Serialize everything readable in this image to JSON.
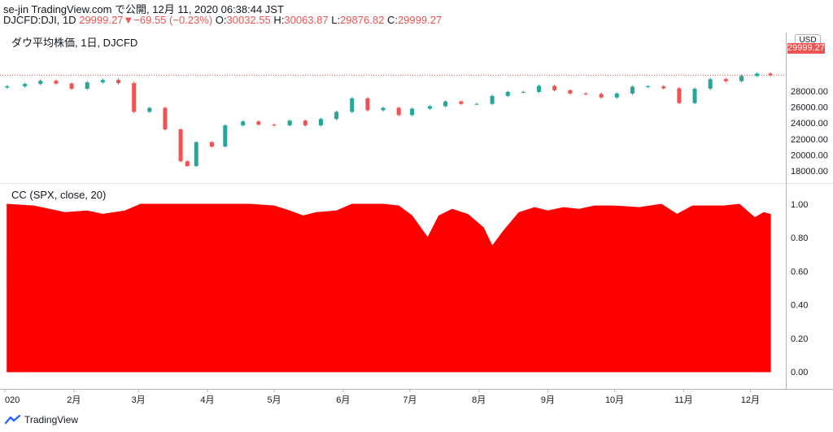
{
  "header": {
    "line1": "se-jin TradingView.com で公開, 12月 11, 2020 06:38:44 JST",
    "symbol": "DJCFD:DJI, 1D",
    "last": "29999.27",
    "change": "−69.55 (−0.23%)",
    "o_label": "O:",
    "o_value": "30032.55",
    "h_label": "H:",
    "h_value": "30063.87",
    "l_label": "L:",
    "l_value": "29876.82",
    "c_label": "C:",
    "c_value": "29999.27",
    "colors": {
      "up": "#26a69a",
      "down": "#ef5350"
    }
  },
  "price_pane": {
    "title": "ダウ平均株価, 1日, DJCFD",
    "currency": "USD",
    "last_price_tag": "29999.27",
    "y_ticks": [
      "28000.00",
      "26000.00",
      "24000.00",
      "22000.00",
      "20000.00",
      "18000.00"
    ]
  },
  "indicator_pane": {
    "title": "CC (SPX, close, 20)",
    "y_ticks": [
      "1.00",
      "0.80",
      "0.60",
      "0.40",
      "0.20",
      "0.00"
    ],
    "fill_color": "#ff0000"
  },
  "x_axis": {
    "labels": [
      "020",
      "2月",
      "3月",
      "4月",
      "5月",
      "6月",
      "7月",
      "8月",
      "9月",
      "10月",
      "11月",
      "12月"
    ]
  },
  "footer": {
    "brand": "TradingView"
  },
  "chart_data": [
    {
      "type": "candlestick",
      "title": "ダウ平均株価, 1日, DJCFD",
      "ylim": [
        17500,
        30300
      ],
      "x": [
        "2020-01-02",
        "2020-01-10",
        "2020-01-17",
        "2020-01-24",
        "2020-01-31",
        "2020-02-07",
        "2020-02-14",
        "2020-02-21",
        "2020-02-28",
        "2020-03-06",
        "2020-03-13",
        "2020-03-20",
        "2020-03-23",
        "2020-03-27",
        "2020-04-03",
        "2020-04-09",
        "2020-04-17",
        "2020-04-24",
        "2020-05-01",
        "2020-05-08",
        "2020-05-15",
        "2020-05-22",
        "2020-05-29",
        "2020-06-05",
        "2020-06-12",
        "2020-06-19",
        "2020-06-26",
        "2020-07-02",
        "2020-07-10",
        "2020-07-17",
        "2020-07-24",
        "2020-07-31",
        "2020-08-07",
        "2020-08-14",
        "2020-08-21",
        "2020-08-28",
        "2020-09-04",
        "2020-09-11",
        "2020-09-18",
        "2020-09-25",
        "2020-10-02",
        "2020-10-09",
        "2020-10-16",
        "2020-10-23",
        "2020-10-30",
        "2020-11-06",
        "2020-11-13",
        "2020-11-20",
        "2020-11-27",
        "2020-12-04",
        "2020-12-10"
      ],
      "close": [
        28600,
        28900,
        29300,
        28950,
        28300,
        29100,
        29400,
        29000,
        25400,
        25900,
        23200,
        19200,
        18600,
        21600,
        21050,
        23700,
        24200,
        23800,
        23700,
        24300,
        23700,
        24500,
        25400,
        27100,
        25600,
        25900,
        25000,
        25800,
        26100,
        26700,
        26400,
        26400,
        27400,
        27900,
        27900,
        28650,
        28100,
        27700,
        27650,
        27200,
        27700,
        28550,
        28600,
        28350,
        26500,
        28300,
        29500,
        29250,
        29900,
        30200,
        29999.27
      ]
    },
    {
      "type": "area",
      "title": "CC (SPX, close, 20)",
      "ylim": [
        0,
        1.05
      ],
      "x": [
        "2020-01-02",
        "2020-01-14",
        "2020-01-28",
        "2020-02-07",
        "2020-02-14",
        "2020-02-24",
        "2020-03-02",
        "2020-03-12",
        "2020-03-23",
        "2020-04-06",
        "2020-04-20",
        "2020-05-01",
        "2020-05-08",
        "2020-05-14",
        "2020-05-20",
        "2020-05-29",
        "2020-06-05",
        "2020-06-12",
        "2020-06-19",
        "2020-06-26",
        "2020-07-02",
        "2020-07-09",
        "2020-07-14",
        "2020-07-20",
        "2020-07-27",
        "2020-08-03",
        "2020-08-07",
        "2020-08-12",
        "2020-08-19",
        "2020-08-26",
        "2020-09-01",
        "2020-09-08",
        "2020-09-15",
        "2020-09-22",
        "2020-10-01",
        "2020-10-12",
        "2020-10-22",
        "2020-10-29",
        "2020-11-05",
        "2020-11-12",
        "2020-11-19",
        "2020-11-26",
        "2020-12-03",
        "2020-12-07",
        "2020-12-10"
      ],
      "values": [
        1.0,
        0.99,
        0.95,
        0.96,
        0.94,
        0.96,
        1.0,
        1.0,
        1.0,
        1.0,
        1.0,
        0.99,
        0.96,
        0.93,
        0.95,
        0.96,
        1.0,
        1.0,
        1.0,
        0.99,
        0.93,
        0.8,
        0.93,
        0.97,
        0.94,
        0.86,
        0.75,
        0.84,
        0.95,
        0.98,
        0.96,
        0.98,
        0.97,
        0.99,
        0.99,
        0.98,
        1.0,
        0.94,
        0.99,
        0.99,
        0.99,
        1.0,
        0.92,
        0.95,
        0.94
      ]
    }
  ]
}
